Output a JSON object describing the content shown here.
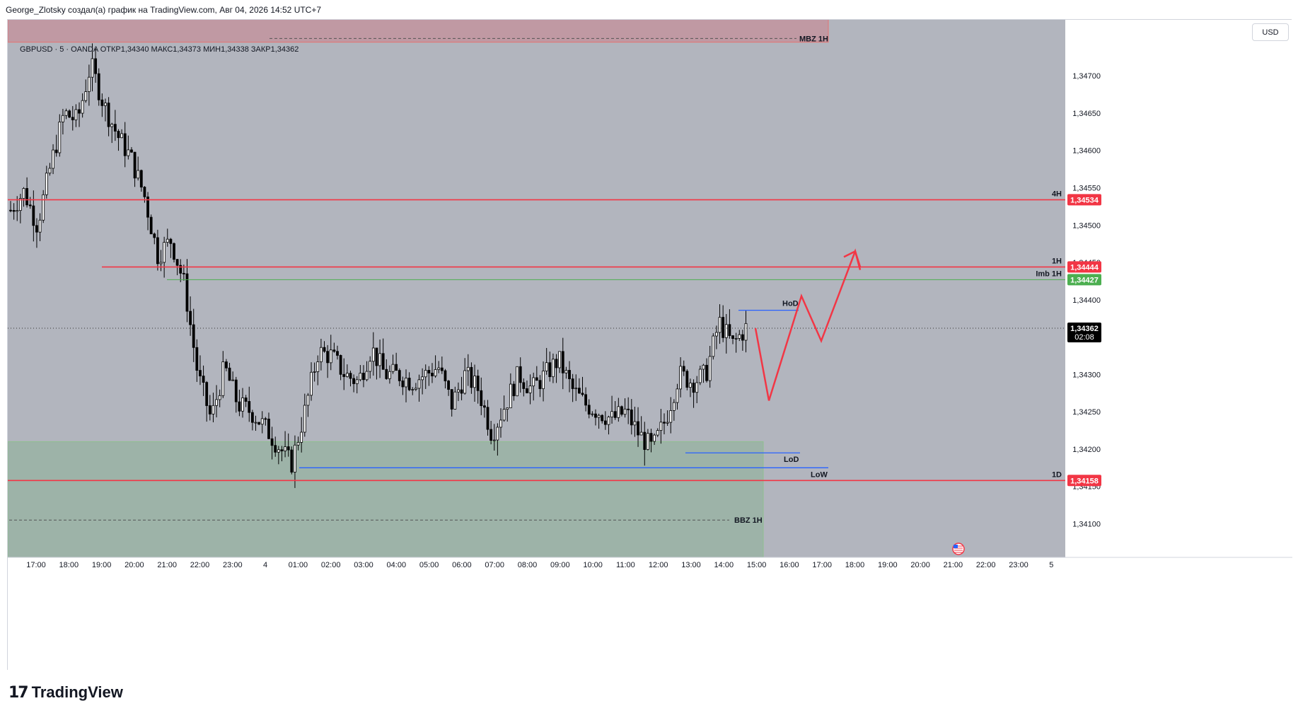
{
  "header": {
    "text": "George_Zlotsky создал(а) график на TradingView.com, Авг 04, 2026 14:52 UTC+7"
  },
  "legend": {
    "text": "GBPUSD · 5 · OANDA  ОТКР1,34340  МАКС1,34373  МИН1,34338  ЗАКР1,34362"
  },
  "currency_button": {
    "label": "USD"
  },
  "footer": {
    "logo_text": "TradingView",
    "logo_mark": "17"
  },
  "colors": {
    "background": "#b2b5be",
    "red_line": "#f23645",
    "green_line": "#4caf50",
    "blue_line": "#2962ff",
    "candle": "#000000",
    "arrow": "#f23645",
    "mbz_zone": "rgba(242,54,69,0.22)",
    "bbz_zone": "rgba(76,175,80,0.20)"
  },
  "chart_data": {
    "type": "candlestick",
    "symbol": "GBPUSD",
    "interval": "5",
    "exchange": "OANDA",
    "ylim": [
      1.34055,
      1.34775
    ],
    "y_ticks": [
      "1,34100",
      "1,34150",
      "1,34200",
      "1,34250",
      "1,34300",
      "1,34350",
      "1,34400",
      "1,34450",
      "1,34500",
      "1,34550",
      "1,34600",
      "1,34650",
      "1,34700"
    ],
    "x_ticks": [
      "17:00",
      "18:00",
      "19:00",
      "20:00",
      "21:00",
      "22:00",
      "23:00",
      "4",
      "01:00",
      "02:00",
      "03:00",
      "04:00",
      "05:00",
      "06:00",
      "07:00",
      "08:00",
      "09:00",
      "10:00",
      "11:00",
      "12:00",
      "13:00",
      "14:00",
      "15:00",
      "16:00",
      "17:00",
      "18:00",
      "19:00",
      "20:00",
      "21:00",
      "22:00",
      "23:00",
      "5"
    ],
    "price_path": [
      [
        0,
        1.3452
      ],
      [
        1,
        1.34545
      ],
      [
        2,
        1.345
      ],
      [
        3,
        1.3458
      ],
      [
        4,
        1.3465
      ],
      [
        5,
        1.3464
      ],
      [
        6,
        1.34715
      ],
      [
        7,
        1.3466
      ],
      [
        8,
        1.3462
      ],
      [
        9,
        1.3459
      ],
      [
        10,
        1.3454
      ],
      [
        11,
        1.3446
      ],
      [
        12,
        1.3448
      ],
      [
        13,
        1.3442
      ],
      [
        14,
        1.343
      ],
      [
        15,
        1.3424
      ],
      [
        16,
        1.3431
      ],
      [
        17,
        1.3426
      ],
      [
        18,
        1.3425
      ],
      [
        19,
        1.3423
      ],
      [
        20,
        1.34205
      ],
      [
        21,
        1.3418
      ],
      [
        22,
        1.3425
      ],
      [
        23,
        1.3433
      ],
      [
        24,
        1.34325
      ],
      [
        25,
        1.343
      ],
      [
        26,
        1.3429
      ],
      [
        27,
        1.34335
      ],
      [
        28,
        1.343
      ],
      [
        29,
        1.343
      ],
      [
        30,
        1.3429
      ],
      [
        31,
        1.343
      ],
      [
        32,
        1.3431
      ],
      [
        33,
        1.3426
      ],
      [
        34,
        1.343
      ],
      [
        35,
        1.3428
      ],
      [
        36,
        1.3422
      ],
      [
        37,
        1.3426
      ],
      [
        38,
        1.343
      ],
      [
        39,
        1.3428
      ],
      [
        40,
        1.343
      ],
      [
        41,
        1.3432
      ],
      [
        42,
        1.3428
      ],
      [
        43,
        1.3426
      ],
      [
        44,
        1.3425
      ],
      [
        45,
        1.3424
      ],
      [
        46,
        1.3425
      ],
      [
        47,
        1.3422
      ],
      [
        48,
        1.342
      ],
      [
        49,
        1.3424
      ],
      [
        50,
        1.343
      ],
      [
        51,
        1.3429
      ],
      [
        52,
        1.343
      ],
      [
        53,
        1.3437
      ],
      [
        54,
        1.3434
      ],
      [
        55,
        1.34362
      ]
    ],
    "levels": [
      {
        "label": "4H",
        "price": 1.34534,
        "price_label": "1,34534",
        "color": "#f23645"
      },
      {
        "label": "1H",
        "price": 1.34444,
        "price_label": "1,34444",
        "color": "#f23645"
      },
      {
        "label": "Imb 1H",
        "price": 1.34427,
        "price_label": "1,34427",
        "color": "#4caf50"
      },
      {
        "label": "1D",
        "price": 1.34158,
        "price_label": "1,34158",
        "color": "#f23645"
      }
    ],
    "current_price": {
      "price": 1.34362,
      "price_label": "1,34362",
      "countdown": "02:08"
    },
    "annotations": [
      {
        "label": "HoD",
        "price": 1.34386
      },
      {
        "label": "LoD",
        "price": 1.34195
      },
      {
        "label": "LoW",
        "price": 1.34175
      },
      {
        "label": "MBZ 1H",
        "price": 1.3475
      },
      {
        "label": "BBZ 1H",
        "price": 1.34105
      }
    ],
    "zones": [
      {
        "label": "MBZ 1H",
        "top": 1.34792,
        "bottom": 1.34745
      },
      {
        "label": "BBZ 1H",
        "top": 1.3421,
        "bottom": 1.34055
      }
    ],
    "projection": [
      1.34362,
      1.34265,
      1.34405,
      1.34345,
      1.34465,
      1.3444
    ],
    "grid": false
  }
}
